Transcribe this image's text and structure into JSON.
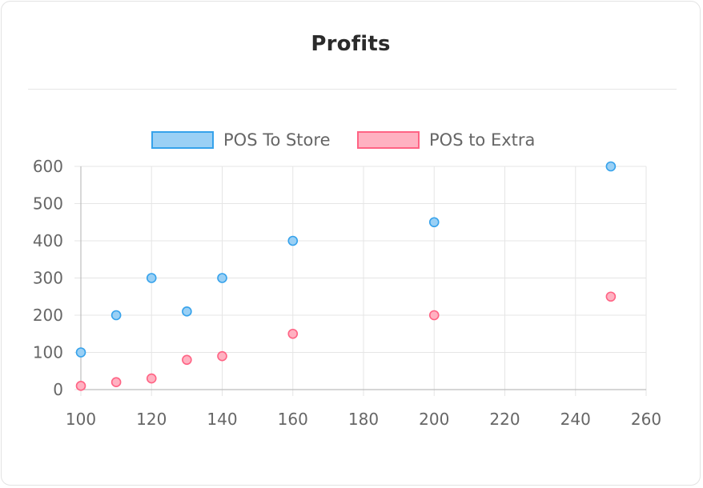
{
  "card": {
    "title": "Profits"
  },
  "colors": {
    "series_1_fill": "#9ad0f5",
    "series_1_border": "#36a2eb",
    "series_2_fill": "#ffb1c1",
    "series_2_border": "#ff6384",
    "grid": "#e5e5e5",
    "axis": "#bdbdbd"
  },
  "chart_data": {
    "type": "scatter",
    "title": "",
    "xlabel": "",
    "ylabel": "",
    "xlim": [
      100,
      260
    ],
    "ylim": [
      0,
      600
    ],
    "x_ticks": [
      100,
      120,
      140,
      160,
      180,
      200,
      220,
      240,
      260
    ],
    "y_ticks": [
      0,
      100,
      200,
      300,
      400,
      500,
      600
    ],
    "grid": true,
    "legend_position": "top",
    "series": [
      {
        "name": "POS To Store",
        "points": [
          {
            "x": 100,
            "y": 100
          },
          {
            "x": 110,
            "y": 200
          },
          {
            "x": 120,
            "y": 300
          },
          {
            "x": 130,
            "y": 210
          },
          {
            "x": 140,
            "y": 300
          },
          {
            "x": 160,
            "y": 400
          },
          {
            "x": 200,
            "y": 450
          },
          {
            "x": 250,
            "y": 600
          }
        ]
      },
      {
        "name": "POS to Extra",
        "points": [
          {
            "x": 100,
            "y": 10
          },
          {
            "x": 110,
            "y": 20
          },
          {
            "x": 120,
            "y": 30
          },
          {
            "x": 130,
            "y": 80
          },
          {
            "x": 140,
            "y": 90
          },
          {
            "x": 160,
            "y": 150
          },
          {
            "x": 200,
            "y": 200
          },
          {
            "x": 250,
            "y": 250
          }
        ]
      }
    ]
  }
}
